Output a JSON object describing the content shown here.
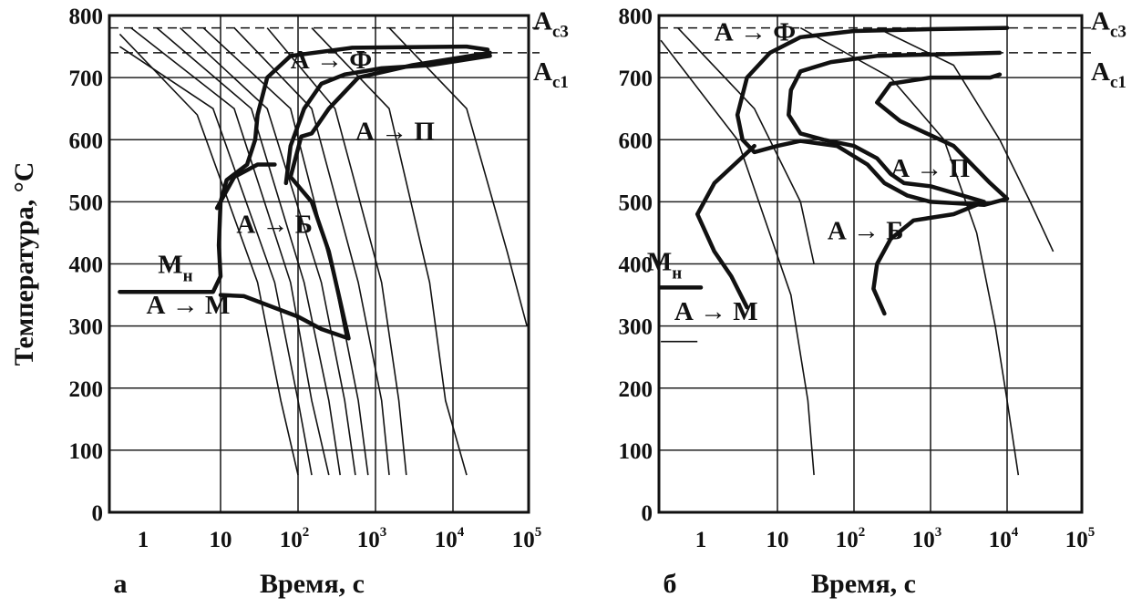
{
  "chart_data": [
    {
      "type": "line",
      "panel_label": "а",
      "xlabel": "Время, с",
      "ylabel": "Температура, °С",
      "xscale": "log",
      "xlim": [
        0.5,
        100000
      ],
      "ylim": [
        0,
        800
      ],
      "x_ticks": [
        {
          "value": 1,
          "base": "1",
          "exp": ""
        },
        {
          "value": 10,
          "base": "10",
          "exp": ""
        },
        {
          "value": 100,
          "base": "10",
          "exp": "2"
        },
        {
          "value": 1000,
          "base": "10",
          "exp": "3"
        },
        {
          "value": 10000,
          "base": "10",
          "exp": "4"
        },
        {
          "value": 100000,
          "base": "10",
          "exp": "5"
        }
      ],
      "y_ticks": [
        "800",
        "700",
        "600",
        "500",
        "400",
        "300",
        "200",
        "100",
        "0"
      ],
      "grid": true,
      "critical_points": [
        {
          "name": "A",
          "sub": "c3",
          "value": 780
        },
        {
          "name": "A",
          "sub": "c1",
          "value": 740
        }
      ],
      "region_labels": [
        {
          "text": "А → Ф",
          "x": 80,
          "y": 715
        },
        {
          "text": "А → П",
          "x": 550,
          "y": 600
        },
        {
          "text": "А → Б",
          "x": 16,
          "y": 450
        },
        {
          "text": "А → М",
          "x": 1.1,
          "y": 320
        }
      ],
      "ms_label": {
        "main": "М",
        "sub": "н",
        "x": 3.5,
        "y": 385
      },
      "series": [
        {
          "role": "transformation-start",
          "points": [
            [
              28000,
              745
            ],
            [
              15000,
              750
            ],
            [
              500,
              748
            ],
            [
              80,
              735
            ],
            [
              40,
              700
            ],
            [
              30,
              640
            ],
            [
              28,
              600
            ],
            [
              22,
              560
            ],
            [
              12,
              535
            ],
            [
              10,
              500
            ],
            [
              9.5,
              430
            ],
            [
              10,
              380
            ],
            [
              8,
              355
            ],
            [
              0.5,
              355
            ]
          ]
        },
        {
          "role": "transformation-end",
          "points": [
            [
              30000,
              740
            ],
            [
              3000,
              720
            ],
            [
              600,
              700
            ],
            [
              250,
              650
            ],
            [
              150,
              610
            ],
            [
              110,
              605
            ],
            [
              80,
              540
            ],
            [
              150,
              500
            ],
            [
              250,
              420
            ],
            [
              350,
              340
            ],
            [
              450,
              280
            ],
            [
              200,
              295
            ],
            [
              100,
              315
            ],
            [
              20,
              348
            ],
            [
              10,
              350
            ]
          ]
        },
        {
          "role": "transformation-end",
          "points": [
            [
              9,
              490
            ],
            [
              15,
              540
            ],
            [
              30,
              560
            ],
            [
              50,
              560
            ]
          ]
        },
        {
          "role": "ferrite-end",
          "points": [
            [
              30000,
              735
            ],
            [
              5000,
              720
            ],
            [
              1200,
              715
            ],
            [
              400,
              705
            ],
            [
              200,
              690
            ],
            [
              120,
              650
            ],
            [
              80,
              590
            ],
            [
              70,
              530
            ]
          ]
        },
        {
          "role": "cooling",
          "points": [
            [
              0.5,
              770
            ],
            [
              5,
              640
            ],
            [
              30,
              370
            ],
            [
              60,
              180
            ],
            [
              100,
              60
            ]
          ]
        },
        {
          "role": "cooling",
          "points": [
            [
              0.5,
              750
            ],
            [
              8,
              650
            ],
            [
              50,
              370
            ],
            [
              100,
              180
            ],
            [
              150,
              60
            ]
          ]
        },
        {
          "role": "cooling",
          "points": [
            [
              0.7,
              780
            ],
            [
              15,
              650
            ],
            [
              80,
              370
            ],
            [
              150,
              180
            ],
            [
              250,
              60
            ]
          ]
        },
        {
          "role": "cooling",
          "points": [
            [
              1.5,
              780
            ],
            [
              25,
              650
            ],
            [
              120,
              370
            ],
            [
              250,
              180
            ],
            [
              350,
              60
            ]
          ]
        },
        {
          "role": "cooling",
          "points": [
            [
              3,
              780
            ],
            [
              40,
              650
            ],
            [
              200,
              370
            ],
            [
              400,
              180
            ],
            [
              550,
              60
            ]
          ]
        },
        {
          "role": "cooling",
          "points": [
            [
              6,
              780
            ],
            [
              80,
              650
            ],
            [
              300,
              370
            ],
            [
              600,
              180
            ],
            [
              800,
              60
            ]
          ]
        },
        {
          "role": "cooling",
          "points": [
            [
              15,
              780
            ],
            [
              150,
              650
            ],
            [
              600,
              370
            ],
            [
              1200,
              180
            ],
            [
              1500,
              60
            ]
          ]
        },
        {
          "role": "cooling",
          "points": [
            [
              40,
              780
            ],
            [
              300,
              650
            ],
            [
              1200,
              370
            ],
            [
              2000,
              180
            ],
            [
              2500,
              60
            ]
          ]
        },
        {
          "role": "cooling",
          "points": [
            [
              150,
              780
            ],
            [
              1500,
              650
            ],
            [
              5000,
              370
            ],
            [
              8000,
              180
            ],
            [
              15000,
              60
            ]
          ]
        },
        {
          "role": "cooling",
          "points": [
            [
              1500,
              780
            ],
            [
              15000,
              650
            ],
            [
              50000,
              420
            ],
            [
              90000,
              300
            ]
          ]
        }
      ]
    },
    {
      "type": "line",
      "panel_label": "б",
      "xlabel": "Время, с",
      "ylabel": "",
      "xscale": "log",
      "xlim": [
        0.3,
        100000
      ],
      "ylim": [
        0,
        800
      ],
      "x_ticks": [
        {
          "value": 1,
          "base": "1",
          "exp": ""
        },
        {
          "value": 10,
          "base": "10",
          "exp": ""
        },
        {
          "value": 100,
          "base": "10",
          "exp": "2"
        },
        {
          "value": 1000,
          "base": "10",
          "exp": "3"
        },
        {
          "value": 10000,
          "base": "10",
          "exp": "4"
        },
        {
          "value": 100000,
          "base": "10",
          "exp": "5"
        }
      ],
      "y_ticks": [
        "800",
        "700",
        "600",
        "500",
        "400",
        "300",
        "200",
        "100",
        "0"
      ],
      "grid": true,
      "critical_points": [
        {
          "name": "A",
          "sub": "c3",
          "value": 780
        },
        {
          "name": "A",
          "sub": "c1",
          "value": 740
        }
      ],
      "region_labels": [
        {
          "text": "А → Ф",
          "x": 1.5,
          "y": 760
        },
        {
          "text": "А → П",
          "x": 300,
          "y": 540
        },
        {
          "text": "А → Б",
          "x": 45,
          "y": 440
        },
        {
          "text": "А → М",
          "x": 0.45,
          "y": 310
        }
      ],
      "ms_label": {
        "main": "М",
        "sub": "н",
        "x": 0.45,
        "y": 390
      },
      "series": [
        {
          "role": "transformation-start",
          "points": [
            [
              10000,
              780
            ],
            [
              1000,
              778
            ],
            [
              100,
              775
            ],
            [
              20,
              765
            ],
            [
              8,
              740
            ],
            [
              4,
              700
            ],
            [
              3,
              640
            ],
            [
              3.5,
              600
            ],
            [
              5,
              580
            ],
            [
              10,
              590
            ],
            [
              20,
              598
            ],
            [
              60,
              590
            ],
            [
              150,
              560
            ],
            [
              250,
              530
            ],
            [
              500,
              510
            ],
            [
              1000,
              500
            ],
            [
              5000,
              495
            ],
            [
              10000,
              505
            ],
            [
              6000,
              530
            ],
            [
              2000,
              590
            ],
            [
              400,
              630
            ],
            [
              200,
              660
            ],
            [
              300,
              690
            ],
            [
              1000,
              700
            ],
            [
              6000,
              700
            ],
            [
              8000,
              705
            ]
          ]
        },
        {
          "role": "transformation-end",
          "points": [
            [
              8000,
              740
            ],
            [
              2000,
              738
            ],
            [
              200,
              735
            ],
            [
              50,
              725
            ],
            [
              20,
              710
            ],
            [
              15,
              680
            ],
            [
              14,
              640
            ],
            [
              20,
              610
            ],
            [
              40,
              600
            ],
            [
              100,
              590
            ],
            [
              200,
              570
            ],
            [
              300,
              545
            ],
            [
              450,
              530
            ],
            [
              1000,
              525
            ],
            [
              5000,
              500
            ],
            [
              2000,
              480
            ],
            [
              600,
              470
            ],
            [
              300,
              440
            ],
            [
              200,
              400
            ],
            [
              180,
              360
            ],
            [
              250,
              320
            ]
          ]
        },
        {
          "role": "bainite-start",
          "points": [
            [
              5,
              590
            ],
            [
              1.5,
              530
            ],
            [
              0.9,
              480
            ],
            [
              1.5,
              420
            ],
            [
              2.5,
              380
            ],
            [
              4,
              330
            ]
          ]
        },
        {
          "role": "cooling",
          "points": [
            [
              0.3,
              760
            ],
            [
              3,
              600
            ],
            [
              15,
              350
            ],
            [
              25,
              180
            ],
            [
              30,
              60
            ]
          ]
        },
        {
          "role": "cooling",
          "points": [
            [
              0.5,
              780
            ],
            [
              5,
              650
            ],
            [
              20,
              500
            ],
            [
              30,
              400
            ]
          ]
        },
        {
          "role": "cooling",
          "points": [
            [
              20,
              780
            ],
            [
              300,
              700
            ],
            [
              1500,
              600
            ],
            [
              4000,
              450
            ],
            [
              7000,
              300
            ],
            [
              10000,
              180
            ],
            [
              14000,
              60
            ]
          ]
        },
        {
          "role": "cooling",
          "points": [
            [
              200,
              780
            ],
            [
              2000,
              720
            ],
            [
              8000,
              600
            ],
            [
              20000,
              500
            ],
            [
              40000,
              420
            ]
          ]
        },
        {
          "role": "ms-start",
          "points": [
            [
              0.3,
              362
            ],
            [
              1,
              362
            ]
          ]
        },
        {
          "role": "mf-end",
          "points": [
            [
              0.3,
              275
            ],
            [
              0.9,
              275
            ]
          ]
        }
      ]
    }
  ]
}
